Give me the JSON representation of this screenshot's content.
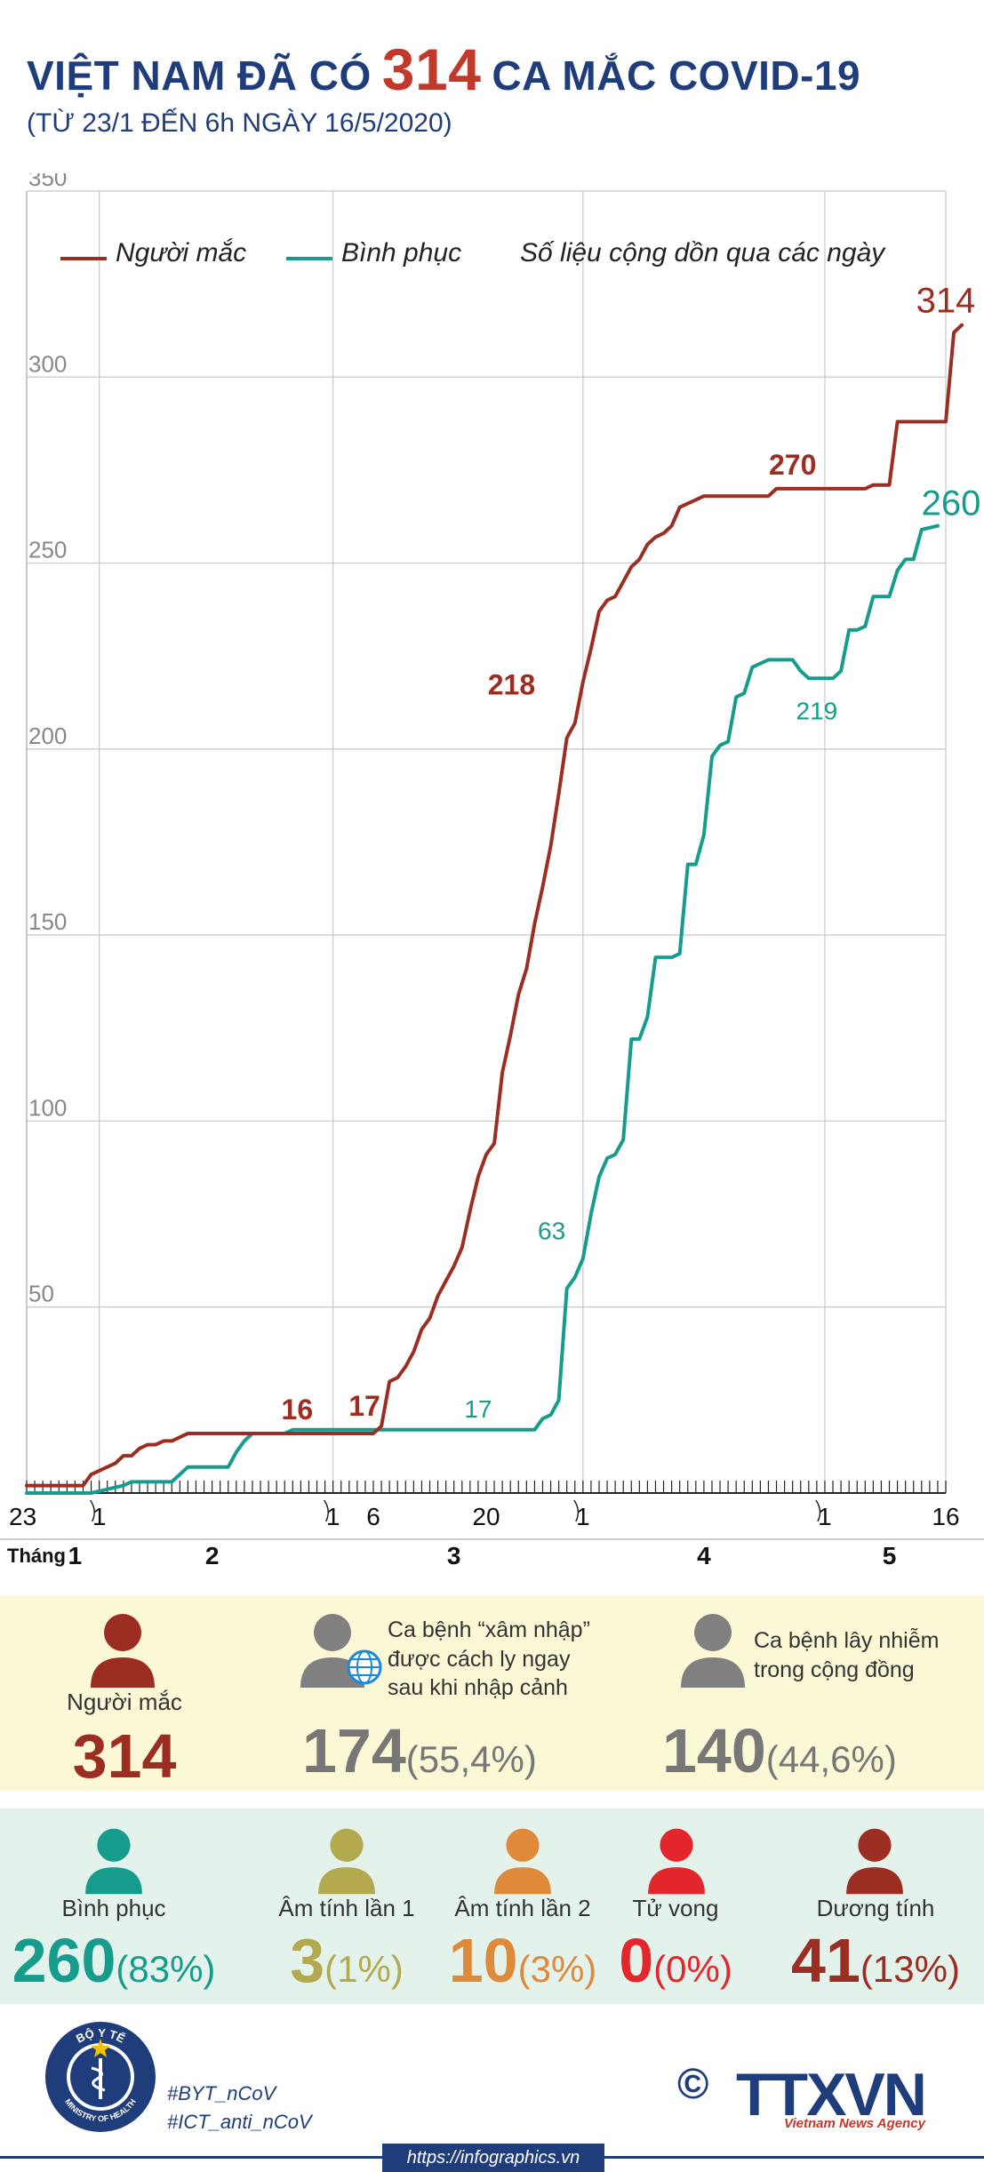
{
  "header": {
    "title_pre": "VIỆT NAM ĐÃ CÓ",
    "title_num": "314",
    "title_post": "CA MẮC COVID-19",
    "subtitle": "(TỪ 23/1 ĐẾN 6h NGÀY 16/5/2020)"
  },
  "legend": {
    "cases": "Người mắc",
    "recovered": "Bình phục",
    "note": "Số liệu cộng dồn qua các ngày"
  },
  "colors": {
    "cases": "#9b2d22",
    "recovered": "#169c8c",
    "navy": "#1f3d7a",
    "gray": "#777777",
    "olive": "#b3a94f",
    "orange": "#de8a3a",
    "red": "#e3262c"
  },
  "chart_data": {
    "type": "line",
    "y_ticks": [
      50,
      100,
      150,
      200,
      250,
      300,
      350
    ],
    "ylim": [
      0,
      350
    ],
    "grid": true,
    "legend_position": "top-left",
    "x_range": [
      0,
      114
    ],
    "x_ticks": [
      {
        "x": 0,
        "label": "23"
      },
      {
        "x": 9,
        "label": "1"
      },
      {
        "x": 38,
        "label": "1"
      },
      {
        "x": 43,
        "label": "6"
      },
      {
        "x": 57,
        "label": "20"
      },
      {
        "x": 69,
        "label": "1"
      },
      {
        "x": 99,
        "label": "1"
      },
      {
        "x": 114,
        "label": "16"
      }
    ],
    "month_label": "Tháng",
    "months": [
      {
        "x": 6,
        "label": "1"
      },
      {
        "x": 23,
        "label": "2"
      },
      {
        "x": 53,
        "label": "3"
      },
      {
        "x": 84,
        "label": "4"
      },
      {
        "x": 107,
        "label": "5"
      }
    ],
    "series": [
      {
        "name": "Người mắc",
        "points": [
          [
            0,
            2
          ],
          [
            7,
            2
          ],
          [
            8,
            5
          ],
          [
            10,
            7
          ],
          [
            11,
            8
          ],
          [
            12,
            10
          ],
          [
            13,
            10
          ],
          [
            14,
            12
          ],
          [
            15,
            13
          ],
          [
            16,
            13
          ],
          [
            17,
            14
          ],
          [
            18,
            14
          ],
          [
            19,
            15
          ],
          [
            20,
            16
          ],
          [
            43,
            16
          ],
          [
            44,
            18
          ],
          [
            45,
            30
          ],
          [
            46,
            31
          ],
          [
            47,
            34
          ],
          [
            48,
            38
          ],
          [
            49,
            44
          ],
          [
            50,
            47
          ],
          [
            51,
            53
          ],
          [
            52,
            57
          ],
          [
            53,
            61
          ],
          [
            54,
            66
          ],
          [
            55,
            76
          ],
          [
            56,
            85
          ],
          [
            57,
            91
          ],
          [
            58,
            94
          ],
          [
            59,
            113
          ],
          [
            60,
            123
          ],
          [
            61,
            134
          ],
          [
            62,
            141
          ],
          [
            63,
            153
          ],
          [
            64,
            163
          ],
          [
            65,
            174
          ],
          [
            66,
            188
          ],
          [
            67,
            203
          ],
          [
            68,
            207
          ],
          [
            69,
            218
          ],
          [
            70,
            227
          ],
          [
            71,
            237
          ],
          [
            72,
            240
          ],
          [
            73,
            241
          ],
          [
            74,
            245
          ],
          [
            75,
            249
          ],
          [
            76,
            251
          ],
          [
            77,
            255
          ],
          [
            78,
            257
          ],
          [
            79,
            258
          ],
          [
            80,
            260
          ],
          [
            81,
            265
          ],
          [
            82,
            266
          ],
          [
            83,
            267
          ],
          [
            84,
            268
          ],
          [
            92,
            268
          ],
          [
            93,
            270
          ],
          [
            104,
            270
          ],
          [
            105,
            271
          ],
          [
            106,
            271
          ],
          [
            107,
            271
          ],
          [
            108,
            288
          ],
          [
            114,
            288
          ],
          [
            115,
            312
          ],
          [
            116,
            314
          ]
        ]
      },
      {
        "name": "Bình phục",
        "points": [
          [
            0,
            0
          ],
          [
            8,
            0
          ],
          [
            10,
            1
          ],
          [
            12,
            2
          ],
          [
            13,
            3
          ],
          [
            18,
            3
          ],
          [
            19,
            5
          ],
          [
            20,
            7
          ],
          [
            25,
            7
          ],
          [
            26,
            11
          ],
          [
            27,
            14
          ],
          [
            28,
            16
          ],
          [
            32,
            16
          ],
          [
            33,
            17
          ],
          [
            57,
            17
          ],
          [
            58,
            17
          ],
          [
            63,
            17
          ],
          [
            64,
            20
          ],
          [
            65,
            21
          ],
          [
            66,
            25
          ],
          [
            67,
            55
          ],
          [
            68,
            58
          ],
          [
            69,
            63
          ],
          [
            70,
            75
          ],
          [
            71,
            85
          ],
          [
            72,
            90
          ],
          [
            73,
            91
          ],
          [
            74,
            95
          ],
          [
            75,
            122
          ],
          [
            76,
            122
          ],
          [
            77,
            128
          ],
          [
            78,
            144
          ],
          [
            80,
            144
          ],
          [
            81,
            145
          ],
          [
            82,
            169
          ],
          [
            83,
            169
          ],
          [
            84,
            177
          ],
          [
            85,
            198
          ],
          [
            86,
            201
          ],
          [
            87,
            202
          ],
          [
            88,
            214
          ],
          [
            89,
            215
          ],
          [
            90,
            222
          ],
          [
            91,
            223
          ],
          [
            92,
            224
          ],
          [
            95,
            224
          ],
          [
            96,
            221
          ],
          [
            97,
            219
          ],
          [
            100,
            219
          ],
          [
            101,
            221
          ],
          [
            102,
            232
          ],
          [
            103,
            232
          ],
          [
            104,
            233
          ],
          [
            105,
            241
          ],
          [
            107,
            241
          ],
          [
            108,
            248
          ],
          [
            109,
            251
          ],
          [
            110,
            251
          ],
          [
            111,
            259
          ],
          [
            113,
            260
          ]
        ]
      }
    ],
    "annotations": [
      {
        "series": "Người mắc",
        "x": 33,
        "y": 16,
        "label": "16"
      },
      {
        "series": "Người mắc",
        "x": 43,
        "y": 17,
        "label": "17"
      },
      {
        "series": "Người mắc",
        "x": 63,
        "y": 218,
        "label": "218"
      },
      {
        "series": "Người mắc",
        "x": 95,
        "y": 270,
        "label": "270"
      },
      {
        "series": "Người mắc",
        "x": 114,
        "y": 314,
        "label": "314"
      },
      {
        "series": "Bình phục",
        "x": 56,
        "y": 17,
        "label": "17"
      },
      {
        "series": "Bình phục",
        "x": 66,
        "y": 63,
        "label": "63"
      },
      {
        "series": "Bình phục",
        "x": 98,
        "y": 219,
        "label": "219"
      },
      {
        "series": "Bình phục",
        "x": 114,
        "y": 260,
        "label": "260"
      }
    ]
  },
  "summary_top": {
    "cases": {
      "label": "Người mắc",
      "value": "314"
    },
    "imported": {
      "desc1": "Ca bệnh “xâm nhập”",
      "desc2": "được cách ly ngay",
      "desc3": "sau khi nhập cảnh",
      "value": "174",
      "pct": "(55,4%)"
    },
    "community": {
      "desc1": "Ca bệnh lây nhiễm",
      "desc2": "trong cộng đồng",
      "value": "140",
      "pct": "(44,6%)"
    }
  },
  "summary_bottom": [
    {
      "label": "Bình phục",
      "value": "260",
      "pct": "(83%)"
    },
    {
      "label": "Âm tính lần 1",
      "value": "3",
      "pct": "(1%)"
    },
    {
      "label": "Âm tính lần 2",
      "value": "10",
      "pct": "(3%)"
    },
    {
      "label": "Tử vong",
      "value": "0",
      "pct": "(0%)"
    },
    {
      "label": "Dương tính",
      "value": "41",
      "pct": "(13%)"
    }
  ],
  "footer": {
    "tag1": "#BYT_nCoV",
    "tag2": "#ICT_anti_nCoV",
    "url": "https://infographics.vn",
    "agency": "TTXVN",
    "agency_en": "Vietnam News Agency",
    "copyright": "©",
    "logo_top": "BỘ Y TẾ",
    "logo_bottom": "MINISTRY OF HEALTH"
  }
}
